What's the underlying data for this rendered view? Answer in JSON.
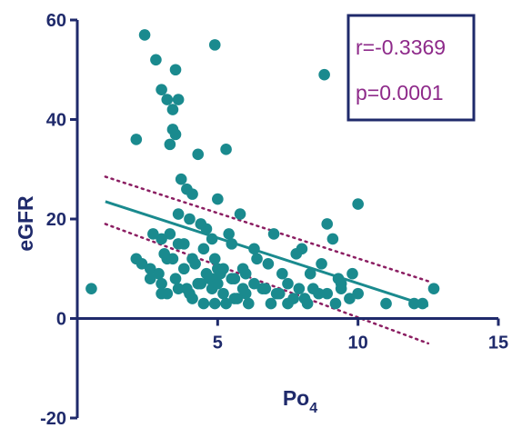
{
  "chart_data": {
    "type": "scatter",
    "title": "",
    "xlabel": "Po",
    "xlabel_subscript": "4",
    "ylabel": "eGFR",
    "xlim": [
      0,
      15
    ],
    "ylim": [
      -20,
      60
    ],
    "x_ticks": [
      {
        "value": 5,
        "label": "5"
      },
      {
        "value": 10,
        "label": "10"
      },
      {
        "value": 15,
        "label": "15"
      }
    ],
    "y_ticks": [
      {
        "value": 60,
        "label": "60"
      },
      {
        "value": 40,
        "label": "40"
      },
      {
        "value": 20,
        "label": "20"
      },
      {
        "value": 0,
        "label": "0"
      },
      {
        "value": -20,
        "label": "-20"
      }
    ],
    "grid": false,
    "colors": {
      "points": "#1a8a8e",
      "regression_line": "#1a8a8e",
      "confidence_band": "#8b1e62",
      "axes": "#1f2a6b",
      "annotation_text": "#8e2a8a",
      "annotation_border": "#1f2a6b"
    },
    "regression": {
      "x": [
        1.0,
        12.5
      ],
      "y": [
        23.5,
        2.5
      ]
    },
    "confidence_band": {
      "upper": {
        "x": [
          1.0,
          12.5
        ],
        "y": [
          28.5,
          7.5
        ]
      },
      "lower": {
        "x": [
          1.0,
          12.5
        ],
        "y": [
          19.0,
          -5.0
        ]
      }
    },
    "annotation": {
      "r": "r=-0.3369",
      "p": "p=0.0001"
    },
    "points": {
      "x": [
        0.5,
        2.4,
        2.8,
        3.0,
        3.2,
        3.5,
        3.6,
        3.4,
        3.5,
        3.3,
        3.4,
        3.7,
        3.9,
        4.1,
        3.6,
        4.9,
        5.0,
        8.8,
        2.1,
        4.6,
        5.3,
        3.3,
        3.8,
        4.0,
        4.4,
        4.8,
        5.8,
        2.7,
        3.0,
        3.2,
        3.6,
        4.1,
        4.5,
        5.0,
        5.5,
        6.3,
        7.0,
        8.0,
        8.9,
        9.1,
        10.0,
        2.1,
        2.3,
        2.6,
        2.9,
        3.1,
        3.4,
        3.8,
        4.2,
        4.6,
        4.9,
        5.2,
        5.6,
        6.0,
        6.4,
        6.8,
        7.3,
        7.8,
        8.3,
        8.7,
        9.3,
        9.8,
        2.6,
        3.0,
        3.5,
        3.9,
        4.3,
        4.7,
        5.1,
        5.5,
        5.9,
        6.3,
        6.7,
        7.1,
        7.5,
        7.9,
        8.4,
        8.9,
        9.4,
        10.0,
        3.2,
        3.6,
        4.0,
        4.4,
        4.8,
        5.2,
        5.6,
        6.0,
        6.6,
        7.2,
        7.7,
        8.1,
        8.6,
        9.2,
        9.7,
        4.1,
        4.5,
        4.9,
        5.3,
        5.7,
        6.1,
        6.9,
        7.5,
        8.2,
        3.0,
        4.8,
        5.0,
        9.4,
        11.0,
        12.0,
        12.3,
        12.7,
        4.3,
        5.4,
        5.9
      ],
      "y": [
        6,
        57,
        52,
        46,
        44,
        50,
        44,
        42,
        37,
        35,
        38,
        28,
        26,
        25,
        21,
        55,
        24,
        49,
        36,
        18,
        34,
        17,
        15,
        20,
        19,
        16,
        21,
        17,
        16,
        12,
        15,
        12,
        14,
        10,
        15,
        14,
        17,
        14,
        19,
        16,
        23,
        12,
        11,
        10,
        9,
        13,
        12,
        10,
        11,
        9,
        12,
        10,
        8,
        9,
        12,
        11,
        9,
        13,
        9,
        11,
        8,
        9,
        8,
        7,
        8,
        6,
        7,
        8,
        9,
        8,
        6,
        7,
        6,
        5,
        7,
        6,
        6,
        5,
        6,
        5,
        5,
        6,
        5,
        7,
        6,
        5,
        4,
        5,
        6,
        5,
        4,
        4,
        5,
        3,
        4,
        4,
        3,
        3,
        3,
        4,
        3,
        3,
        3,
        3,
        5,
        8,
        7,
        7,
        3,
        3,
        3,
        6,
        33,
        17,
        10
      ]
    }
  }
}
